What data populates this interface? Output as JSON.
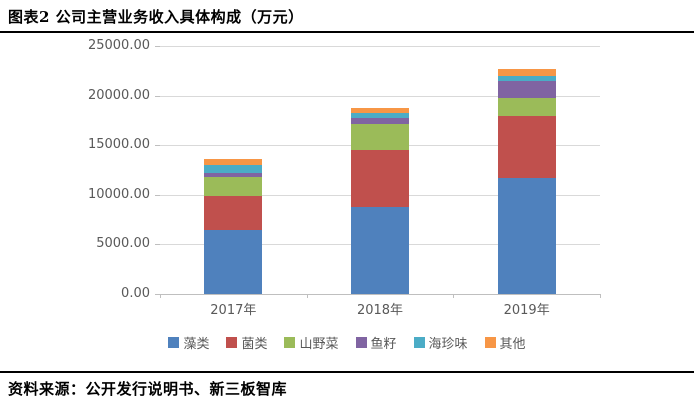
{
  "header": {
    "title": "图表2 公司主营业务收入具体构成（万元）"
  },
  "footer": {
    "source": "资料来源：公开发行说明书、新三板智库"
  },
  "chart_data": {
    "type": "bar",
    "stacked": true,
    "title": "图表2 公司主营业务收入具体构成（万元）",
    "unit": "万元",
    "categories": [
      "2017年",
      "2018年",
      "2019年"
    ],
    "series": [
      {
        "name": "藻类",
        "color": "#4F81BD",
        "values": [
          6450,
          8800,
          11700
        ]
      },
      {
        "name": "菌类",
        "color": "#C0504D",
        "values": [
          3430,
          5700,
          6250
        ]
      },
      {
        "name": "山野菜",
        "color": "#9BBB59",
        "values": [
          1920,
          2600,
          1800
        ]
      },
      {
        "name": "鱼籽",
        "color": "#8064A2",
        "values": [
          400,
          600,
          1700
        ]
      },
      {
        "name": "海珍味",
        "color": "#4BACC6",
        "values": [
          800,
          550,
          530
        ]
      },
      {
        "name": "其他",
        "color": "#F79646",
        "values": [
          600,
          500,
          750
        ]
      }
    ],
    "totals": [
      13600,
      18750,
      22730
    ],
    "xlabel": "",
    "ylabel": "",
    "ylim": [
      0,
      25000
    ],
    "yticks": [
      0,
      5000,
      10000,
      15000,
      20000,
      25000
    ],
    "ytick_labels": [
      "0.00",
      "5000.00",
      "10000.00",
      "15000.00",
      "20000.00",
      "25000.00"
    ],
    "grid": true,
    "legend_position": "bottom",
    "colors": {
      "gridline": "#d9d9d9",
      "axis": "#bfbfbf",
      "tick_text": "#595959",
      "title_text": "#000000"
    }
  }
}
